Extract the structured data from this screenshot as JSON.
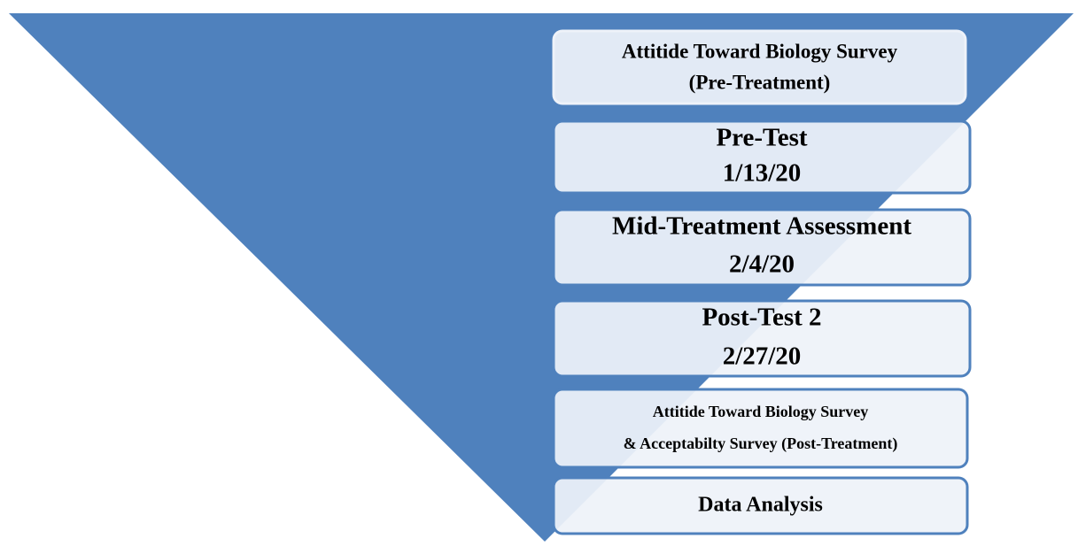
{
  "nodes": [
    {
      "lines": [
        "Attitide Toward Biology Survey",
        "(Pre-Treatment)"
      ]
    },
    {
      "lines": [
        "Pre-Test",
        "1/13/20"
      ]
    },
    {
      "lines": [
        "Mid-Treatment Assessment",
        "2/4/20"
      ]
    },
    {
      "lines": [
        "Post-Test  2",
        "2/27/20"
      ]
    },
    {
      "lines": [
        "Attitide Toward Biology Survey",
        "& Acceptabilty Survey (Post-Treatment)"
      ]
    },
    {
      "lines": [
        "Data Analysis"
      ]
    }
  ]
}
